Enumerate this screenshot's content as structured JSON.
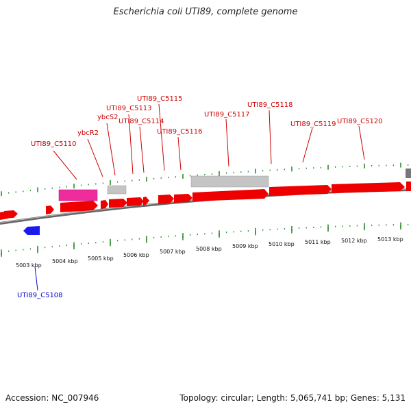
{
  "title": "Escherichia coli UTI89, complete genome",
  "footer": {
    "accession": "Accession: NC_007946",
    "stats": "Topology: circular; Length: 5,065,741 bp; Genes: 5,131"
  },
  "colors": {
    "forward_gene": "#ee0000",
    "reverse_gene": "#1a1aee",
    "rna_gene": "#ee2c9c",
    "pseudo_gene": "#bbbbbb",
    "label_forward": "#cc0000",
    "label_reverse": "#0000cc",
    "tick": "#2e8b2e",
    "backbone": "#888888"
  },
  "scale_labels": [
    "5003 kbp",
    "5004 kbp",
    "5005 kbp",
    "5006 kbp",
    "5007 kbp",
    "5008 kbp",
    "5009 kbp",
    "5010 kbp",
    "5011 kbp",
    "5012 kbp",
    "5013 kbp"
  ],
  "gene_labels_top": [
    "UTI89_C5110",
    "ybcR2",
    "ybcS2",
    "UTI89_C5113",
    "UTI89_C5114",
    "UTI89_C5115",
    "UTI89_C5116",
    "UTI89_C5117",
    "UTI89_C5118",
    "UTI89_C5119",
    "UTI89_C5120"
  ],
  "gene_labels_bottom": [
    "UTI89_C5108"
  ]
}
